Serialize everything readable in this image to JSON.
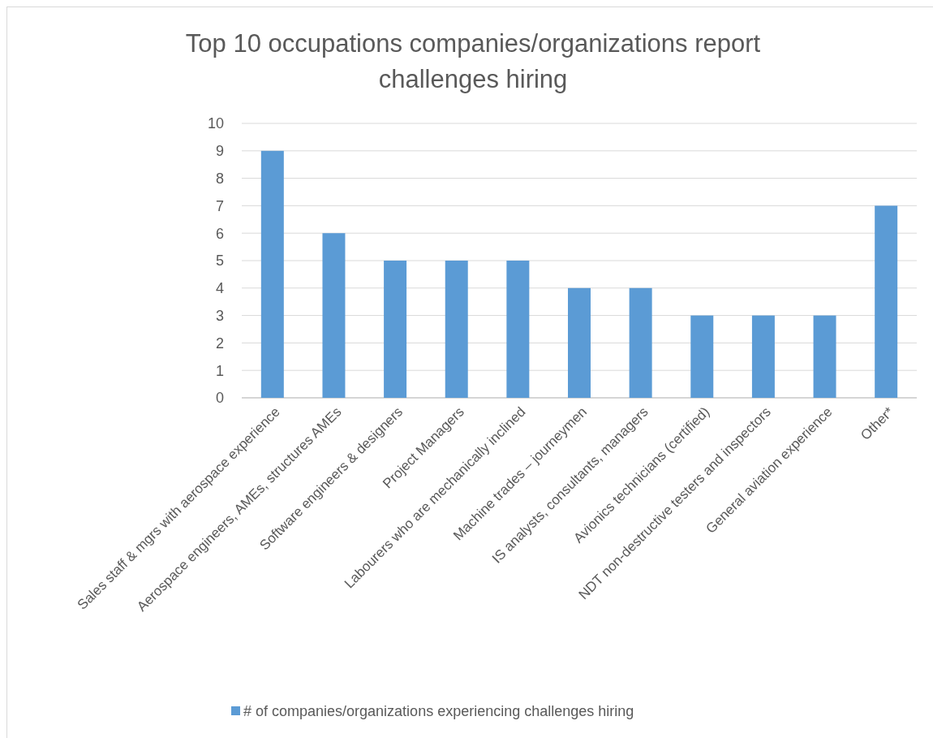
{
  "chart_data": {
    "type": "bar",
    "title": "Top 10 occupations companies/organizations report challenges hiring",
    "categories": [
      "Sales staff & mgrs with aerospace experience",
      "Aerospace engineers, AMEs, structures AMEs",
      "Software engineers & designers",
      "Project Managers",
      "Labourers who are mechanically inclined",
      "Machine trades – journeymen",
      "IS analysts, consultants, managers",
      "Avionics technicians (certified)",
      "NDT non-destructive testers and inspectors",
      "General aviation experience",
      "Other*"
    ],
    "series": [
      {
        "name": "# of companies/organizations experiencing challenges hiring",
        "color": "#5b9bd5",
        "values": [
          9,
          6,
          5,
          5,
          5,
          4,
          4,
          3,
          3,
          3,
          7
        ]
      }
    ],
    "ylim": [
      0,
      10
    ],
    "yticks": [
      0,
      1,
      2,
      3,
      4,
      5,
      6,
      7,
      8,
      9,
      10
    ],
    "grid": "y",
    "legend": "bottom"
  }
}
